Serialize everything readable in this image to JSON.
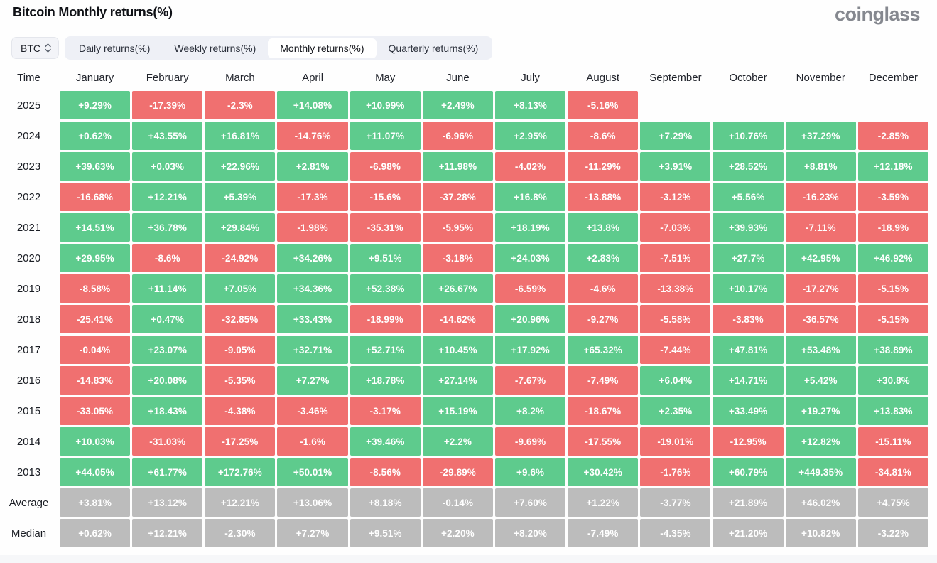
{
  "page": {
    "title": "Bitcoin Monthly returns(%)",
    "logo": "coinglass"
  },
  "controls": {
    "symbol_selector": {
      "value": "BTC"
    },
    "tabs": [
      {
        "label": "Daily returns(%)",
        "selected": false
      },
      {
        "label": "Weekly returns(%)",
        "selected": false
      },
      {
        "label": "Monthly returns(%)",
        "selected": true
      },
      {
        "label": "Quarterly returns(%)",
        "selected": false
      }
    ]
  },
  "colors": {
    "positive": "#5ecb8d",
    "negative": "#f07070",
    "summary": "#bcbcbc"
  },
  "chart_data": {
    "type": "heatmap",
    "title": "Bitcoin Monthly returns(%)",
    "time_header": "Time",
    "columns": [
      "January",
      "February",
      "March",
      "April",
      "May",
      "June",
      "July",
      "August",
      "September",
      "October",
      "November",
      "December"
    ],
    "rows": [
      {
        "label": "2025",
        "type": "year",
        "values": [
          "+9.29%",
          "-17.39%",
          "-2.3%",
          "+14.08%",
          "+10.99%",
          "+2.49%",
          "+8.13%",
          "-5.16%",
          null,
          null,
          null,
          null
        ]
      },
      {
        "label": "2024",
        "type": "year",
        "values": [
          "+0.62%",
          "+43.55%",
          "+16.81%",
          "-14.76%",
          "+11.07%",
          "-6.96%",
          "+2.95%",
          "-8.6%",
          "+7.29%",
          "+10.76%",
          "+37.29%",
          "-2.85%"
        ]
      },
      {
        "label": "2023",
        "type": "year",
        "values": [
          "+39.63%",
          "+0.03%",
          "+22.96%",
          "+2.81%",
          "-6.98%",
          "+11.98%",
          "-4.02%",
          "-11.29%",
          "+3.91%",
          "+28.52%",
          "+8.81%",
          "+12.18%"
        ]
      },
      {
        "label": "2022",
        "type": "year",
        "values": [
          "-16.68%",
          "+12.21%",
          "+5.39%",
          "-17.3%",
          "-15.6%",
          "-37.28%",
          "+16.8%",
          "-13.88%",
          "-3.12%",
          "+5.56%",
          "-16.23%",
          "-3.59%"
        ]
      },
      {
        "label": "2021",
        "type": "year",
        "values": [
          "+14.51%",
          "+36.78%",
          "+29.84%",
          "-1.98%",
          "-35.31%",
          "-5.95%",
          "+18.19%",
          "+13.8%",
          "-7.03%",
          "+39.93%",
          "-7.11%",
          "-18.9%"
        ]
      },
      {
        "label": "2020",
        "type": "year",
        "values": [
          "+29.95%",
          "-8.6%",
          "-24.92%",
          "+34.26%",
          "+9.51%",
          "-3.18%",
          "+24.03%",
          "+2.83%",
          "-7.51%",
          "+27.7%",
          "+42.95%",
          "+46.92%"
        ]
      },
      {
        "label": "2019",
        "type": "year",
        "values": [
          "-8.58%",
          "+11.14%",
          "+7.05%",
          "+34.36%",
          "+52.38%",
          "+26.67%",
          "-6.59%",
          "-4.6%",
          "-13.38%",
          "+10.17%",
          "-17.27%",
          "-5.15%"
        ]
      },
      {
        "label": "2018",
        "type": "year",
        "values": [
          "-25.41%",
          "+0.47%",
          "-32.85%",
          "+33.43%",
          "-18.99%",
          "-14.62%",
          "+20.96%",
          "-9.27%",
          "-5.58%",
          "-3.83%",
          "-36.57%",
          "-5.15%"
        ]
      },
      {
        "label": "2017",
        "type": "year",
        "values": [
          "-0.04%",
          "+23.07%",
          "-9.05%",
          "+32.71%",
          "+52.71%",
          "+10.45%",
          "+17.92%",
          "+65.32%",
          "-7.44%",
          "+47.81%",
          "+53.48%",
          "+38.89%"
        ]
      },
      {
        "label": "2016",
        "type": "year",
        "values": [
          "-14.83%",
          "+20.08%",
          "-5.35%",
          "+7.27%",
          "+18.78%",
          "+27.14%",
          "-7.67%",
          "-7.49%",
          "+6.04%",
          "+14.71%",
          "+5.42%",
          "+30.8%"
        ]
      },
      {
        "label": "2015",
        "type": "year",
        "values": [
          "-33.05%",
          "+18.43%",
          "-4.38%",
          "-3.46%",
          "-3.17%",
          "+15.19%",
          "+8.2%",
          "-18.67%",
          "+2.35%",
          "+33.49%",
          "+19.27%",
          "+13.83%"
        ]
      },
      {
        "label": "2014",
        "type": "year",
        "values": [
          "+10.03%",
          "-31.03%",
          "-17.25%",
          "-1.6%",
          "+39.46%",
          "+2.2%",
          "-9.69%",
          "-17.55%",
          "-19.01%",
          "-12.95%",
          "+12.82%",
          "-15.11%"
        ]
      },
      {
        "label": "2013",
        "type": "year",
        "values": [
          "+44.05%",
          "+61.77%",
          "+172.76%",
          "+50.01%",
          "-8.56%",
          "-29.89%",
          "+9.6%",
          "+30.42%",
          "-1.76%",
          "+60.79%",
          "+449.35%",
          "-34.81%"
        ]
      },
      {
        "label": "Average",
        "type": "summary",
        "values": [
          "+3.81%",
          "+13.12%",
          "+12.21%",
          "+13.06%",
          "+8.18%",
          "-0.14%",
          "+7.60%",
          "+1.22%",
          "-3.77%",
          "+21.89%",
          "+46.02%",
          "+4.75%"
        ]
      },
      {
        "label": "Median",
        "type": "summary",
        "values": [
          "+0.62%",
          "+12.21%",
          "-2.30%",
          "+7.27%",
          "+9.51%",
          "+2.20%",
          "+8.20%",
          "-7.49%",
          "-4.35%",
          "+21.20%",
          "+10.82%",
          "-3.22%"
        ]
      }
    ]
  }
}
